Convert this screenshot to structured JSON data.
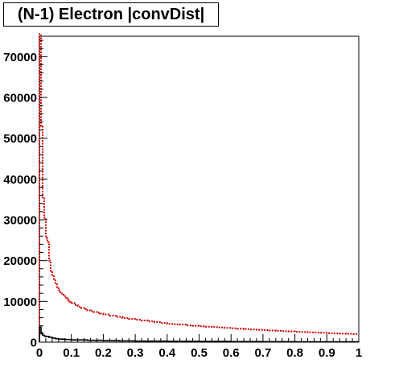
{
  "chart_data": {
    "type": "step",
    "title": "(N-1) Electron |convDist|",
    "xlim": [
      0,
      1
    ],
    "ylim": [
      0,
      75000
    ],
    "x_ticks": [
      "0",
      "0.1",
      "0.2",
      "0.3",
      "0.4",
      "0.5",
      "0.6",
      "0.7",
      "0.8",
      "0.9",
      "1"
    ],
    "y_ticks": [
      "0",
      "10000",
      "20000",
      "30000",
      "40000",
      "50000",
      "60000",
      "70000"
    ],
    "series": [
      {
        "color": "#d40000",
        "line_style": "dotted",
        "bins": [
          [
            0.0,
            75500
          ],
          [
            0.005,
            53000
          ],
          [
            0.01,
            35500
          ],
          [
            0.015,
            30500
          ],
          [
            0.02,
            25500
          ],
          [
            0.025,
            24500
          ],
          [
            0.03,
            20000
          ],
          [
            0.035,
            17500
          ],
          [
            0.04,
            16500
          ],
          [
            0.045,
            15500
          ],
          [
            0.05,
            14500
          ],
          [
            0.055,
            13500
          ],
          [
            0.06,
            12700
          ],
          [
            0.065,
            12200
          ],
          [
            0.07,
            11700
          ],
          [
            0.075,
            11300
          ],
          [
            0.08,
            10900
          ],
          [
            0.085,
            10600
          ],
          [
            0.09,
            10200
          ],
          [
            0.095,
            9900
          ],
          [
            0.1,
            9600
          ],
          [
            0.11,
            9100
          ],
          [
            0.12,
            8700
          ],
          [
            0.13,
            8400
          ],
          [
            0.14,
            8100
          ],
          [
            0.15,
            7800
          ],
          [
            0.16,
            7600
          ],
          [
            0.17,
            7400
          ],
          [
            0.18,
            7200
          ],
          [
            0.19,
            7000
          ],
          [
            0.2,
            6800
          ],
          [
            0.22,
            6500
          ],
          [
            0.24,
            6200
          ],
          [
            0.26,
            5900
          ],
          [
            0.28,
            5700
          ],
          [
            0.3,
            5500
          ],
          [
            0.32,
            5300
          ],
          [
            0.34,
            5100
          ],
          [
            0.36,
            4900
          ],
          [
            0.38,
            4700
          ],
          [
            0.4,
            4500
          ],
          [
            0.42,
            4400
          ],
          [
            0.44,
            4300
          ],
          [
            0.46,
            4100
          ],
          [
            0.48,
            4000
          ],
          [
            0.5,
            3900
          ],
          [
            0.52,
            3800
          ],
          [
            0.54,
            3700
          ],
          [
            0.56,
            3600
          ],
          [
            0.58,
            3500
          ],
          [
            0.6,
            3400
          ],
          [
            0.62,
            3300
          ],
          [
            0.64,
            3200
          ],
          [
            0.66,
            3100
          ],
          [
            0.68,
            3000
          ],
          [
            0.7,
            2950
          ],
          [
            0.72,
            2850
          ],
          [
            0.74,
            2800
          ],
          [
            0.76,
            2700
          ],
          [
            0.78,
            2650
          ],
          [
            0.8,
            2550
          ],
          [
            0.82,
            2500
          ],
          [
            0.84,
            2400
          ],
          [
            0.86,
            2350
          ],
          [
            0.88,
            2300
          ],
          [
            0.9,
            2200
          ],
          [
            0.92,
            2150
          ],
          [
            0.94,
            2100
          ],
          [
            0.96,
            2050
          ],
          [
            0.98,
            2000
          ],
          [
            1.0,
            2000
          ]
        ]
      },
      {
        "color": "#000000",
        "line_style": "solid",
        "bins": [
          [
            0.0,
            3700
          ],
          [
            0.005,
            2300
          ],
          [
            0.01,
            1700
          ],
          [
            0.015,
            1500
          ],
          [
            0.02,
            1400
          ],
          [
            0.03,
            1200
          ],
          [
            0.04,
            1000
          ],
          [
            0.05,
            850
          ],
          [
            0.06,
            750
          ],
          [
            0.08,
            650
          ],
          [
            0.1,
            550
          ],
          [
            0.15,
            450
          ],
          [
            0.2,
            380
          ],
          [
            0.25,
            320
          ],
          [
            0.3,
            270
          ],
          [
            0.4,
            220
          ],
          [
            0.5,
            180
          ],
          [
            0.6,
            150
          ],
          [
            0.7,
            120
          ],
          [
            0.8,
            100
          ],
          [
            0.9,
            80
          ],
          [
            1.0,
            80
          ]
        ]
      }
    ]
  }
}
